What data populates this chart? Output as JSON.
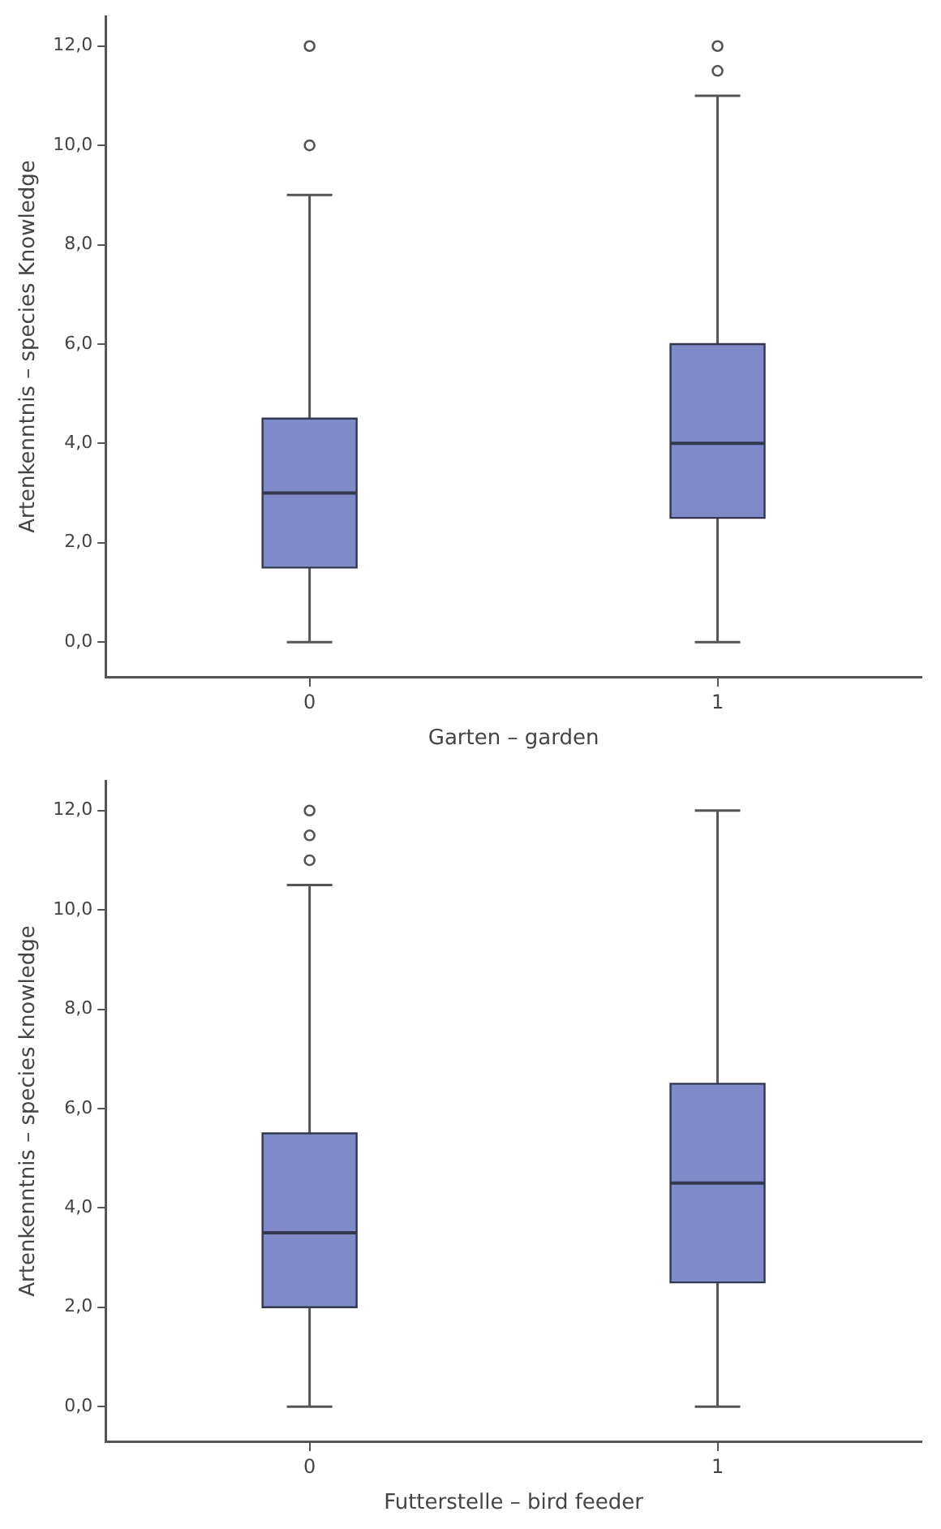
{
  "chart_data": [
    {
      "type": "box",
      "xlabel": "Garten – garden",
      "ylabel": "Artenkenntnis – species Knowledge",
      "categories": [
        "0",
        "1"
      ],
      "series": [
        {
          "color": "#7f8bc9",
          "boxes": [
            {
              "low": 0,
              "q1": 1.5,
              "median": 3,
              "q3": 4.5,
              "high": 9,
              "outliers": [
                10,
                12
              ]
            },
            {
              "low": 0,
              "q1": 2.5,
              "median": 4,
              "q3": 6,
              "high": 11,
              "outliers": [
                11.5,
                12
              ]
            }
          ]
        }
      ],
      "ylim": [
        -0.7,
        12.6
      ],
      "yticks": [
        {
          "value": 0,
          "label": "0,0"
        },
        {
          "value": 2,
          "label": "2,0"
        },
        {
          "value": 4,
          "label": "4,0"
        },
        {
          "value": 6,
          "label": "6,0"
        },
        {
          "value": 8,
          "label": "8,0"
        },
        {
          "value": 10,
          "label": "10,0"
        },
        {
          "value": 12,
          "label": "12,0"
        }
      ],
      "grid": false,
      "legend": false
    },
    {
      "type": "box",
      "xlabel": "Futterstelle – bird feeder",
      "ylabel": "Artenkenntnis – species knowledge",
      "categories": [
        "0",
        "1"
      ],
      "series": [
        {
          "color": "#7f8bc9",
          "boxes": [
            {
              "low": 0,
              "q1": 2,
              "median": 3.5,
              "q3": 5.5,
              "high": 10.5,
              "outliers": [
                11,
                11.5,
                12
              ]
            },
            {
              "low": 0,
              "q1": 2.5,
              "median": 4.5,
              "q3": 6.5,
              "high": 12
            }
          ]
        }
      ],
      "ylim": [
        -0.7,
        12.6
      ],
      "yticks": [
        {
          "value": 0,
          "label": "0,0"
        },
        {
          "value": 2,
          "label": "2,0"
        },
        {
          "value": 4,
          "label": "4,0"
        },
        {
          "value": 6,
          "label": "6,0"
        },
        {
          "value": 8,
          "label": "8,0"
        },
        {
          "value": 10,
          "label": "10,0"
        },
        {
          "value": 12,
          "label": "12,0"
        }
      ],
      "grid": false,
      "legend": false
    }
  ]
}
